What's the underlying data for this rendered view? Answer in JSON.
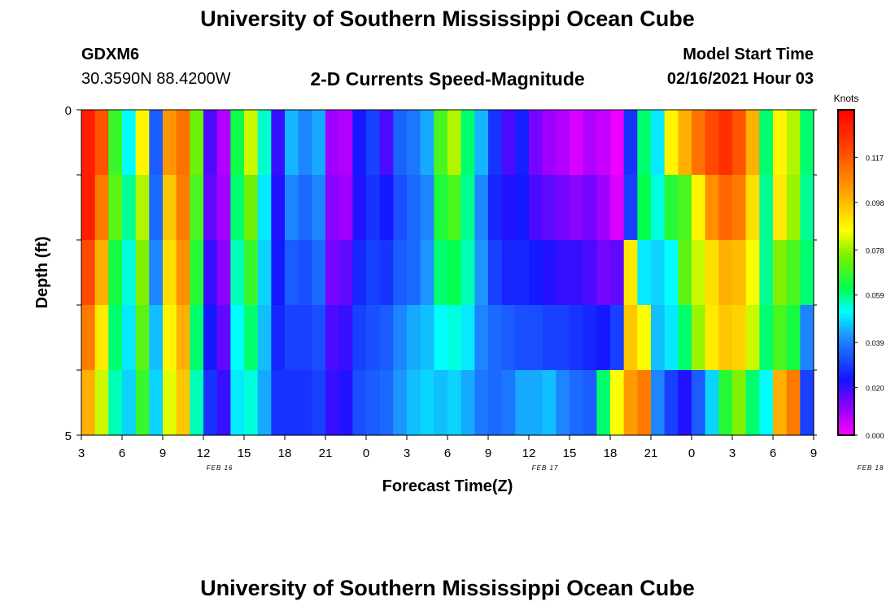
{
  "header": {
    "title": "University of Southern Mississippi Ocean Cube",
    "station_id": "GDXM6",
    "coordinates": "30.3590N 88.4200W",
    "subtitle": "2-D Currents Speed-Magnitude",
    "model_start_label": "Model Start Time",
    "model_start_value": "02/16/2021 Hour 03"
  },
  "footer": {
    "title": "University of Southern Mississippi Ocean Cube"
  },
  "chart_data": {
    "type": "heatmap",
    "xlabel": "Forecast Time(Z)",
    "ylabel": "Depth (ft)",
    "x_tick_labels": [
      "3",
      "6",
      "9",
      "12",
      "15",
      "18",
      "21",
      "0",
      "3",
      "6",
      "9",
      "12",
      "15",
      "18",
      "21",
      "0",
      "3",
      "6",
      "9"
    ],
    "x_date_labels": [
      {
        "text": "FEB 16",
        "at_hour_index": 9
      },
      {
        "text": "FEB 17",
        "at_hour_index": 33
      },
      {
        "text": "FEB 18",
        "at_hour_index": 57
      }
    ],
    "y_tick_labels": [
      "0",
      "5"
    ],
    "ylim": [
      0,
      5
    ],
    "x_hours": 54,
    "colorbar": {
      "label": "Knots",
      "ticks": [
        "0.000",
        "0.020",
        "0.039",
        "0.059",
        "0.078",
        "0.098",
        "0.117"
      ],
      "range": [
        0,
        0.137
      ]
    },
    "depth_rows": 5,
    "values": [
      [
        0.13,
        0.118,
        0.068,
        0.052,
        0.088,
        0.034,
        0.105,
        0.112,
        0.074,
        0.018,
        0.008,
        0.063,
        0.082,
        0.055,
        0.02,
        0.045,
        0.04,
        0.044,
        0.01,
        0.008,
        0.024,
        0.03,
        0.018,
        0.035,
        0.038,
        0.044,
        0.07,
        0.08,
        0.06,
        0.045,
        0.028,
        0.018,
        0.025,
        0.014,
        0.01,
        0.008,
        0.004,
        0.008,
        0.006,
        0.002,
        0.028,
        0.06,
        0.05,
        0.088,
        0.1,
        0.112,
        0.12,
        0.126,
        0.118,
        0.1,
        0.06,
        0.088,
        0.08,
        0.06
      ],
      [
        0.13,
        0.11,
        0.072,
        0.058,
        0.08,
        0.036,
        0.096,
        0.11,
        0.07,
        0.016,
        0.01,
        0.06,
        0.074,
        0.05,
        0.022,
        0.04,
        0.036,
        0.04,
        0.012,
        0.01,
        0.022,
        0.028,
        0.024,
        0.032,
        0.036,
        0.04,
        0.065,
        0.07,
        0.058,
        0.04,
        0.026,
        0.022,
        0.024,
        0.018,
        0.016,
        0.014,
        0.012,
        0.014,
        0.01,
        0.004,
        0.03,
        0.062,
        0.054,
        0.066,
        0.07,
        0.088,
        0.106,
        0.114,
        0.11,
        0.092,
        0.058,
        0.09,
        0.078,
        0.058
      ],
      [
        0.12,
        0.1,
        0.064,
        0.054,
        0.076,
        0.04,
        0.092,
        0.106,
        0.066,
        0.02,
        0.012,
        0.056,
        0.068,
        0.048,
        0.024,
        0.034,
        0.032,
        0.036,
        0.014,
        0.016,
        0.026,
        0.03,
        0.028,
        0.034,
        0.036,
        0.042,
        0.06,
        0.062,
        0.056,
        0.042,
        0.03,
        0.026,
        0.026,
        0.024,
        0.022,
        0.02,
        0.02,
        0.018,
        0.014,
        0.016,
        0.09,
        0.05,
        0.048,
        0.052,
        0.072,
        0.082,
        0.092,
        0.1,
        0.098,
        0.086,
        0.058,
        0.076,
        0.07,
        0.06
      ],
      [
        0.11,
        0.09,
        0.06,
        0.05,
        0.072,
        0.046,
        0.088,
        0.1,
        0.06,
        0.024,
        0.016,
        0.052,
        0.06,
        0.046,
        0.026,
        0.03,
        0.03,
        0.032,
        0.018,
        0.02,
        0.03,
        0.032,
        0.034,
        0.04,
        0.044,
        0.046,
        0.052,
        0.054,
        0.05,
        0.04,
        0.036,
        0.034,
        0.032,
        0.032,
        0.03,
        0.03,
        0.028,
        0.026,
        0.024,
        0.03,
        0.096,
        0.086,
        0.046,
        0.05,
        0.06,
        0.078,
        0.09,
        0.096,
        0.094,
        0.082,
        0.06,
        0.07,
        0.064,
        0.04
      ],
      [
        0.1,
        0.082,
        0.056,
        0.048,
        0.068,
        0.048,
        0.084,
        0.096,
        0.056,
        0.028,
        0.02,
        0.05,
        0.054,
        0.044,
        0.028,
        0.028,
        0.028,
        0.03,
        0.02,
        0.022,
        0.032,
        0.034,
        0.036,
        0.042,
        0.046,
        0.048,
        0.046,
        0.048,
        0.044,
        0.038,
        0.036,
        0.038,
        0.044,
        0.044,
        0.046,
        0.04,
        0.036,
        0.034,
        0.06,
        0.086,
        0.104,
        0.11,
        0.04,
        0.03,
        0.022,
        0.034,
        0.048,
        0.066,
        0.076,
        0.06,
        0.052,
        0.1,
        0.11,
        0.03
      ]
    ]
  }
}
